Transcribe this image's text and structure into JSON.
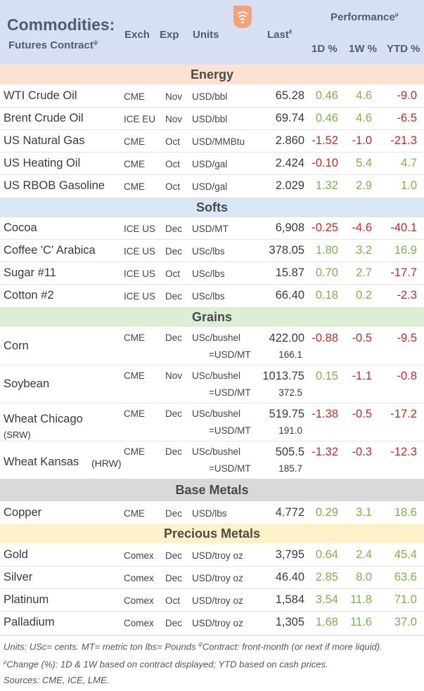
{
  "header": {
    "title": "Commodities:",
    "subtitle": "Futures Contract",
    "subtitle_sup": "ψ",
    "exch": "Exch",
    "exp": "Exp",
    "units": "Units",
    "last": "Last",
    "last_sup": "θ",
    "performance": "Performance",
    "performance_sup": "μ",
    "d1": "1D %",
    "w1": "1W %",
    "ytd": "YTD %"
  },
  "colors": {
    "positive": "#7cb342",
    "negative": "#c62828"
  },
  "sections": {
    "energy": {
      "label": "Energy",
      "color": "#fde2d2"
    },
    "softs": {
      "label": "Softs",
      "color": "#d9e6f3"
    },
    "grains": {
      "label": "Grains",
      "color": "#dcefd6"
    },
    "base": {
      "label": "Base Metals",
      "color": "#d9d9d9"
    },
    "precious": {
      "label": "Precious Metals",
      "color": "#fdf1c7"
    }
  },
  "energy": [
    {
      "name": "WTI Crude Oil",
      "exch": "CME",
      "exp": "Nov",
      "units": "USD/bbl",
      "last": "65.28",
      "d1": "0.46",
      "w1": "4.6",
      "ytd": "-9.0"
    },
    {
      "name": "Brent Crude Oil",
      "exch": "ICE EU",
      "exp": "Nov",
      "units": "USD/bbl",
      "last": "69.74",
      "d1": "0.46",
      "w1": "4.6",
      "ytd": "-6.5"
    },
    {
      "name": "US Natural Gas",
      "exch": "CME",
      "exp": "Oct",
      "units": "USD/MMBtu",
      "last": "2.860",
      "d1": "-1.52",
      "w1": "-1.0",
      "ytd": "-21.3"
    },
    {
      "name": "US Heating Oil",
      "exch": "CME",
      "exp": "Oct",
      "units": "USD/gal",
      "last": "2.424",
      "d1": "-0.10",
      "w1": "5.4",
      "ytd": "4.7"
    },
    {
      "name": "US RBOB Gasoline",
      "exch": "CME",
      "exp": "Oct",
      "units": "USD/gal",
      "last": "2.029",
      "d1": "1.32",
      "w1": "2.9",
      "ytd": "1.0"
    }
  ],
  "softs": [
    {
      "name": "Cocoa",
      "exch": "ICE US",
      "exp": "Dec",
      "units": "USD/MT",
      "last": "6,908",
      "d1": "-0.25",
      "w1": "-4.6",
      "ytd": "-40.1"
    },
    {
      "name": "Coffee 'C' Arabica",
      "exch": "ICE US",
      "exp": "Dec",
      "units": "USc/lbs",
      "last": "378.05",
      "d1": "1.80",
      "w1": "3.2",
      "ytd": "16.9"
    },
    {
      "name": "Sugar #11",
      "exch": "ICE US",
      "exp": "Oct",
      "units": "USc/lbs",
      "last": "15.87",
      "d1": "0.70",
      "w1": "2.7",
      "ytd": "-17.7"
    },
    {
      "name": "Cotton #2",
      "exch": "ICE US",
      "exp": "Dec",
      "units": "USc/lbs",
      "last": "66.40",
      "d1": "0.18",
      "w1": "0.2",
      "ytd": "-2.3"
    }
  ],
  "grains": [
    {
      "name": "Corn",
      "sub": "",
      "exch": "CME",
      "exp": "Dec",
      "units": "USc/bushel",
      "last": "422.00",
      "conv": "=USD/MT",
      "convval": "166.1",
      "d1": "-0.88",
      "w1": "-0.5",
      "ytd": "-9.5"
    },
    {
      "name": "Soybean",
      "sub": "",
      "exch": "CME",
      "exp": "Nov",
      "units": "USc/bushel",
      "last": "1013.75",
      "conv": "=USD/MT",
      "convval": "372.5",
      "d1": "0.15",
      "w1": "-1.1",
      "ytd": "-0.8"
    },
    {
      "name": "Wheat Chicago",
      "sub": "(SRW)",
      "exch": "CME",
      "exp": "Dec",
      "units": "USc/bushel",
      "last": "519.75",
      "conv": "=USD/MT",
      "convval": "191.0",
      "d1": "-1.38",
      "w1": "-0.5",
      "ytd": "-17.2"
    },
    {
      "name": "Wheat Kansas",
      "sub": "(HRW)",
      "exch": "CME",
      "exp": "Dec",
      "units": "USc/bushel",
      "last": "505.5",
      "conv": "=USD/MT",
      "convval": "185.7",
      "d1": "-1.32",
      "w1": "-0.3",
      "ytd": "-12.3"
    }
  ],
  "base": [
    {
      "name": "Copper",
      "exch": "CME",
      "exp": "Dec",
      "units": "USD/lbs",
      "last": "4.772",
      "d1": "0.29",
      "w1": "3.1",
      "ytd": "18.6"
    }
  ],
  "precious": [
    {
      "name": "Gold",
      "exch": "Comex",
      "exp": "Dec",
      "units": "USD/troy oz",
      "last": "3,795",
      "d1": "0.64",
      "w1": "2.4",
      "ytd": "45.4"
    },
    {
      "name": "Silver",
      "exch": "Comex",
      "exp": "Dec",
      "units": "USD/troy oz",
      "last": "46.40",
      "d1": "2.85",
      "w1": "8.0",
      "ytd": "63.6"
    },
    {
      "name": "Platinum",
      "exch": "Comex",
      "exp": "Oct",
      "units": "USD/troy oz",
      "last": "1,584",
      "d1": "3.54",
      "w1": "11.8",
      "ytd": "71.0"
    },
    {
      "name": "Palladium",
      "exch": "Comex",
      "exp": "Dec",
      "units": "USD/troy oz",
      "last": "1,305",
      "d1": "1.68",
      "w1": "11.6",
      "ytd": "37.0"
    }
  ],
  "footer": {
    "line1": "Units: USc= cents.   MT= metric ton    lbs= Pounds   ",
    "contract_sup": "ψ",
    "line1b": "Contract: front-month (or next if more liquid).   ",
    "change_sup": "μ",
    "line2": "Change (%): 1D & 1W based on contract displayed; YTD based on cash prices.",
    "line3": "Sources: CME, ICE, LME."
  },
  "logo": "signal-logo"
}
